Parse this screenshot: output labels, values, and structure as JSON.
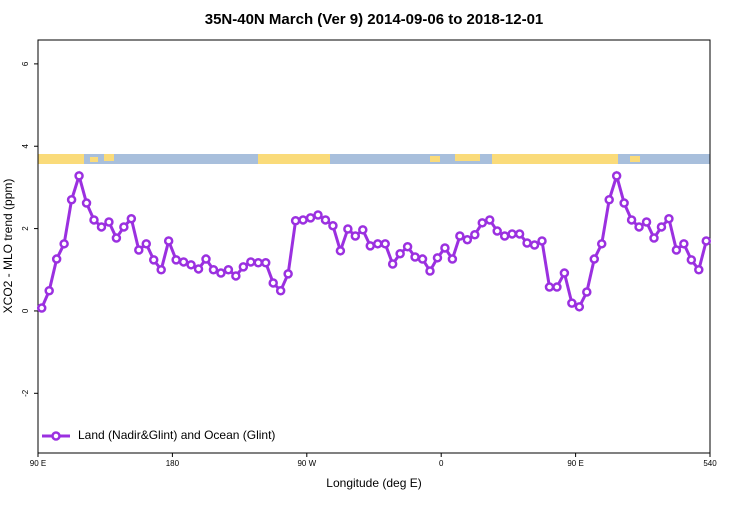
{
  "chart_data": {
    "type": "line",
    "title": "35N-40N March (Ver 9)   2014-09-06 to 2018-12-01",
    "x_label": "Longitude (deg E)",
    "y_label": "XCO2 - MLO trend (ppm)",
    "xlim": [
      90,
      540
    ],
    "ylim": [
      -3.45,
      6.58
    ],
    "xticks": [
      {
        "value": 90,
        "label": "90 E"
      },
      180,
      {
        "value": 270,
        "label": "90 W"
      },
      {
        "value": 360,
        "label": "0"
      },
      {
        "value": 450,
        "label": "90 E"
      },
      540
    ],
    "yticks": [
      -2,
      0,
      2,
      4,
      6
    ],
    "legend": "bottom-left",
    "x": [
      92.5,
      97.5,
      102.5,
      107.5,
      112.5,
      117.5,
      122.5,
      127.5,
      132.5,
      137.5,
      142.5,
      147.5,
      152.5,
      157.5,
      162.5,
      167.5,
      172.5,
      177.5,
      182.5,
      187.5,
      192.5,
      197.5,
      202.5,
      207.5,
      212.5,
      217.5,
      222.5,
      227.5,
      232.5,
      237.5,
      242.5,
      247.5,
      252.5,
      257.5,
      262.5,
      267.5,
      272.5,
      277.5,
      282.5,
      287.5,
      292.5,
      297.5,
      302.5,
      307.5,
      312.5,
      317.5,
      322.5,
      327.5,
      332.5,
      337.5,
      342.5,
      347.5,
      352.5,
      357.5,
      362.5,
      367.5,
      372.5,
      377.5,
      382.5,
      387.5,
      392.5,
      397.5,
      402.5,
      407.5,
      412.5,
      417.5,
      422.5,
      427.5,
      432.5,
      437.5,
      442.5,
      447.5,
      452.5,
      457.5,
      462.5,
      467.5,
      472.5,
      477.5,
      482.5,
      487.5,
      492.5,
      497.5,
      502.5,
      507.5,
      512.5,
      517.5,
      522.5,
      527.5,
      532.5,
      537.5
    ],
    "series": [
      {
        "name": "Land (Nadir&Glint) and Ocean (Glint)",
        "color": "#9b30e0",
        "values": [
          0.07,
          0.49,
          1.26,
          1.63,
          2.7,
          3.28,
          2.62,
          2.21,
          2.04,
          2.16,
          1.77,
          2.04,
          2.24,
          1.48,
          1.63,
          1.24,
          1.0,
          1.7,
          1.24,
          1.19,
          1.12,
          1.02,
          1.26,
          1.0,
          0.92,
          1.0,
          0.85,
          1.07,
          1.19,
          1.17,
          1.17,
          0.68,
          0.49,
          0.9,
          2.19,
          2.21,
          2.26,
          2.33,
          2.21,
          2.07,
          1.46,
          1.99,
          1.82,
          1.97,
          1.58,
          1.63,
          1.63,
          1.14,
          1.39,
          1.56,
          1.31,
          1.26,
          0.97,
          1.29,
          1.53,
          1.26,
          1.82,
          1.73,
          1.85,
          2.14,
          2.21,
          1.94,
          1.82,
          1.87,
          1.87,
          1.65,
          1.6,
          1.7,
          0.58,
          0.58,
          0.92,
          0.19,
          0.1,
          0.46,
          1.26,
          1.63,
          2.7,
          3.28,
          2.62,
          2.21,
          2.04,
          2.16,
          1.77,
          2.04,
          2.24,
          1.48,
          1.63,
          1.24,
          1.0,
          1.7
        ]
      }
    ]
  }
}
